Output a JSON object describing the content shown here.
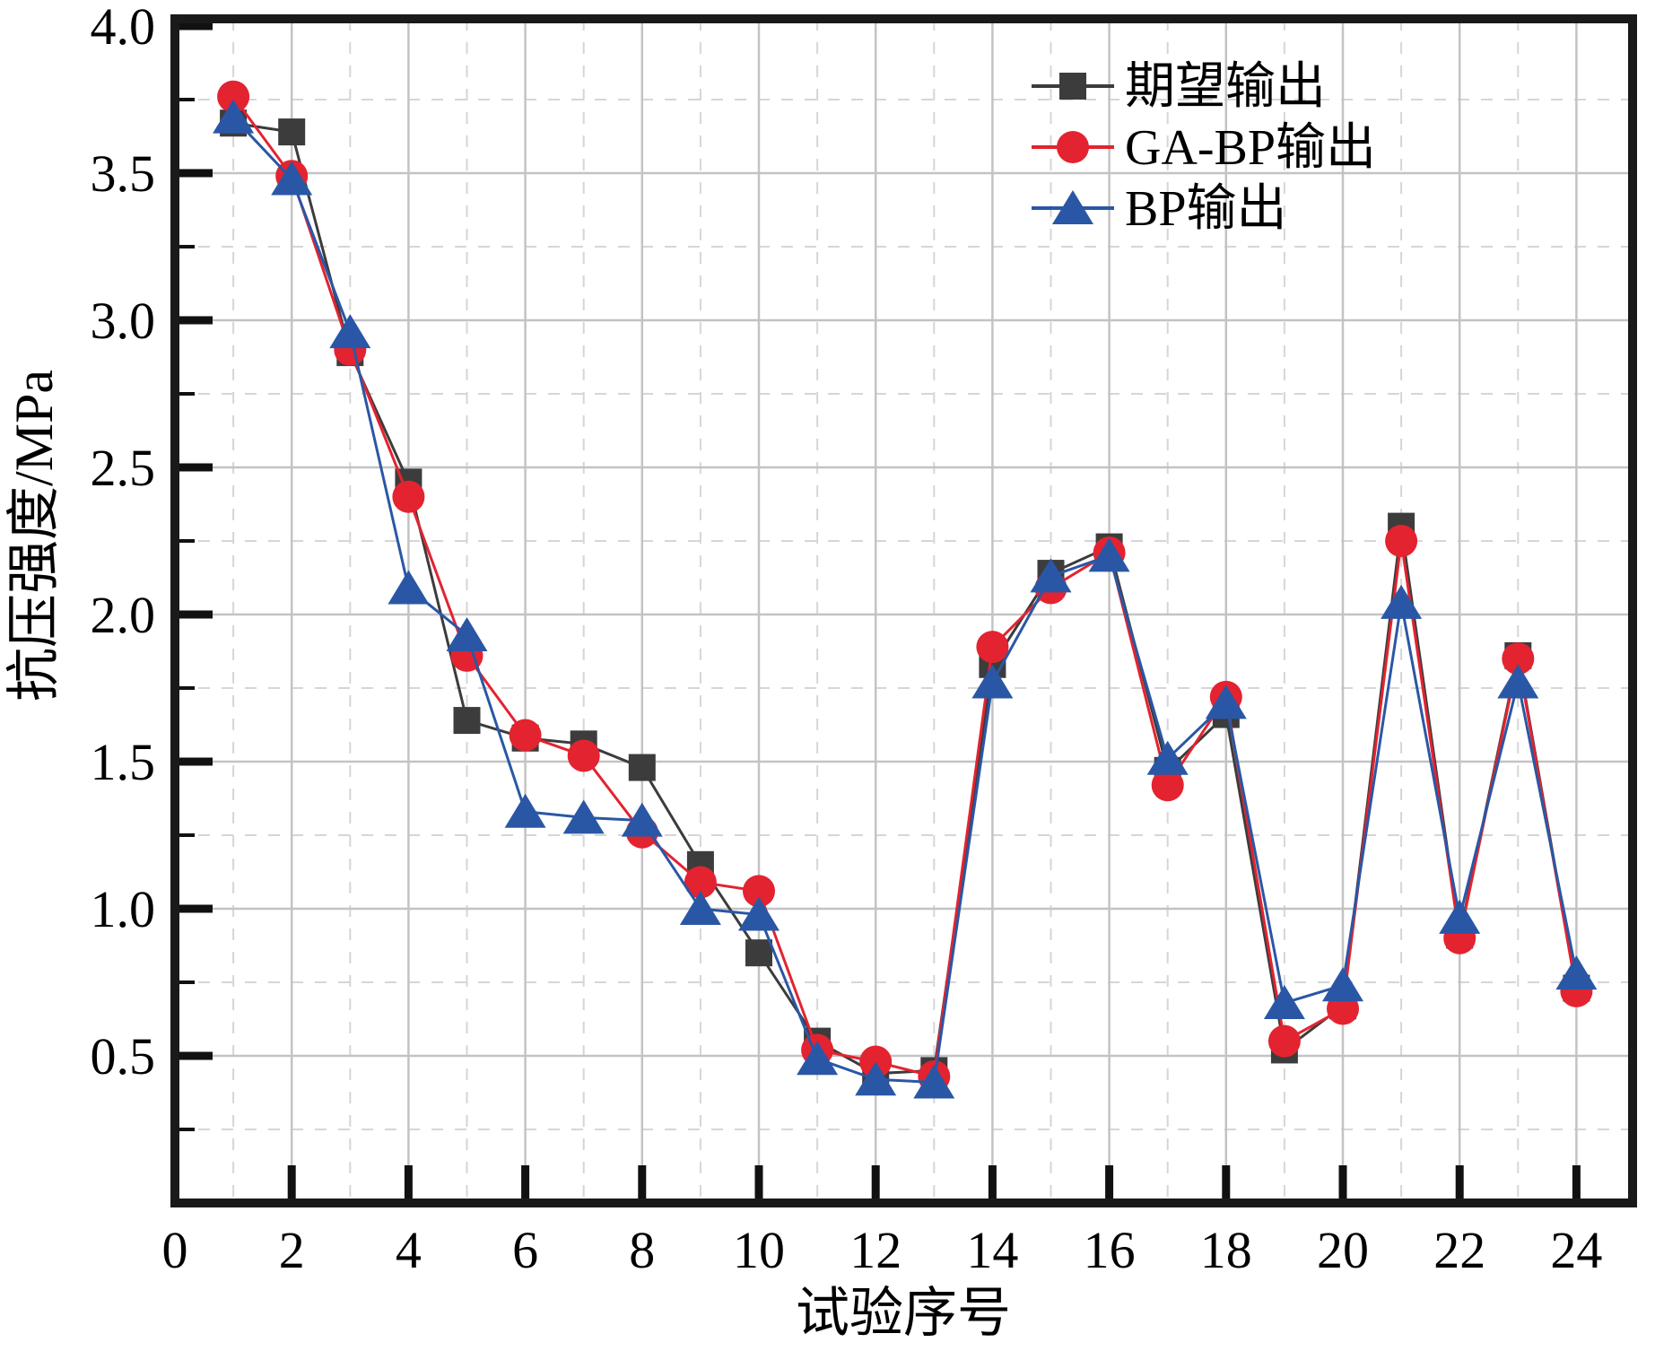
{
  "figure": {
    "background": "#ffffff"
  },
  "axes": {
    "frame_color": "#1a1a1a",
    "grid_major_color": "#c3c3c3",
    "grid_minor_color": "#d6d6d6"
  },
  "legend": {
    "position": "top-right",
    "items": [
      {
        "label": "期望输出",
        "marker": "square",
        "color": "#3c3c3c"
      },
      {
        "label": "GA-BP输出",
        "marker": "circle",
        "color": "#e32330"
      },
      {
        "label": "BP输出",
        "marker": "triangle",
        "color": "#2a57a5"
      }
    ]
  },
  "chart_data": {
    "type": "line",
    "title": "",
    "xlabel": "试验序号",
    "ylabel": "抗压强度/MPa",
    "x": [
      1,
      2,
      3,
      4,
      5,
      6,
      7,
      8,
      9,
      10,
      11,
      12,
      13,
      14,
      15,
      16,
      17,
      18,
      19,
      20,
      21,
      22,
      23,
      24
    ],
    "series": [
      {
        "name": "期望输出",
        "marker": "square",
        "color": "#3c3c3c",
        "values": [
          3.67,
          3.64,
          2.89,
          2.45,
          1.64,
          1.58,
          1.56,
          1.48,
          1.15,
          0.85,
          0.55,
          0.44,
          0.45,
          1.83,
          2.14,
          2.23,
          1.47,
          1.66,
          0.52,
          0.67,
          2.3,
          0.91,
          1.86,
          0.73
        ]
      },
      {
        "name": "GA-BP输出",
        "marker": "circle",
        "color": "#e32330",
        "values": [
          3.76,
          3.49,
          2.9,
          2.4,
          1.86,
          1.59,
          1.52,
          1.26,
          1.09,
          1.06,
          0.52,
          0.48,
          0.43,
          1.89,
          2.09,
          2.21,
          1.42,
          1.72,
          0.55,
          0.66,
          2.25,
          0.9,
          1.85,
          0.72
        ]
      },
      {
        "name": "BP输出",
        "marker": "triangle",
        "color": "#2a57a5",
        "values": [
          3.69,
          3.48,
          2.96,
          2.09,
          1.93,
          1.33,
          1.31,
          1.3,
          1.0,
          0.98,
          0.49,
          0.42,
          0.41,
          1.77,
          2.13,
          2.2,
          1.51,
          1.7,
          0.68,
          0.74,
          2.04,
          0.97,
          1.77,
          0.78
        ]
      }
    ],
    "xlim": [
      0,
      25
    ],
    "ylim": [
      0,
      4.0
    ],
    "xticks": {
      "values": [
        0,
        2,
        4,
        6,
        8,
        10,
        12,
        14,
        16,
        18,
        20,
        22,
        24
      ],
      "labels": [
        "0",
        "2",
        "4",
        "6",
        "8",
        "10",
        "12",
        "14",
        "16",
        "18",
        "20",
        "22",
        "24"
      ]
    },
    "yticks": {
      "values": [
        0.5,
        1.0,
        1.5,
        2.0,
        2.5,
        3.0,
        3.5,
        4.0
      ],
      "labels": [
        "0.5",
        "1.0",
        "1.5",
        "2.0",
        "2.5",
        "3.0",
        "3.5",
        "4.0"
      ]
    },
    "grid": {
      "major": "solid",
      "minor": "dashed",
      "minor_y_step": 0.25,
      "minor_x_step": 1
    },
    "legend_position": "top-right"
  }
}
